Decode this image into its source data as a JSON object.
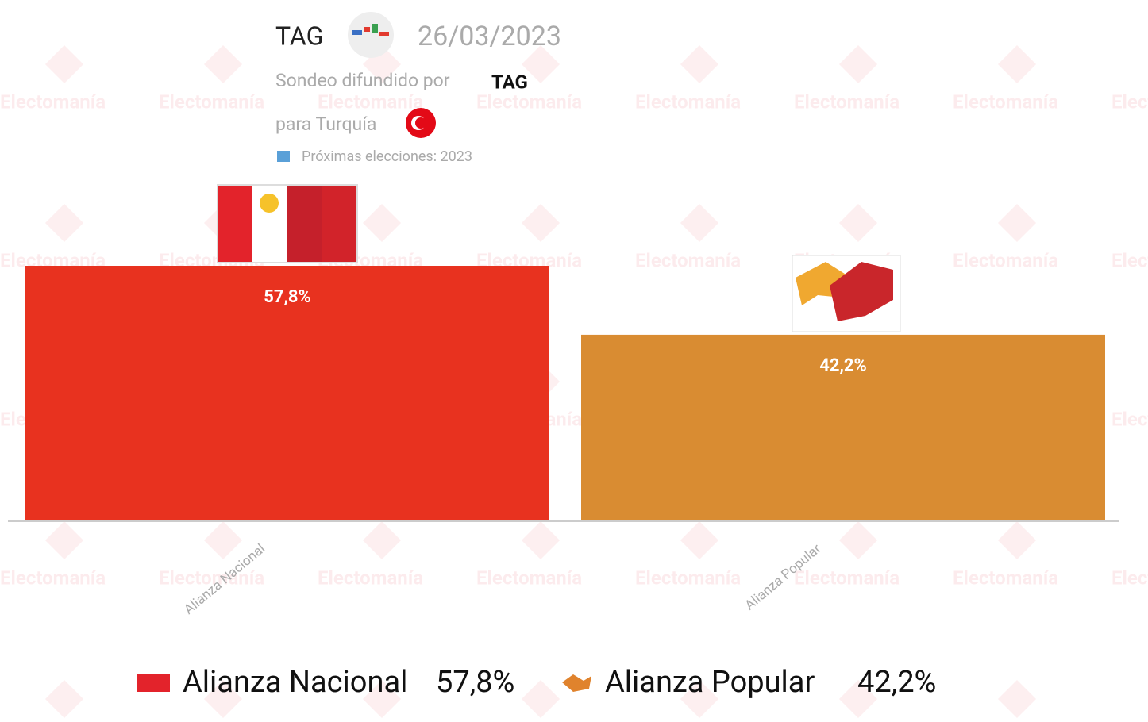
{
  "chart_data": {
    "type": "bar",
    "title": "TAG",
    "date": "26/03/2023",
    "source_prefix": "Sondeo difundido por",
    "source": "TAG",
    "region": "para Turquía",
    "note": "Próximas elecciones: 2023",
    "watermark": "Electomanía",
    "categories": [
      "Alianza Nacional",
      "Alianza Popular"
    ],
    "values": [
      57.8,
      42.2
    ],
    "value_labels": [
      "57,8%",
      "42,2%"
    ],
    "colors": [
      "#e8321f",
      "#d98c32"
    ]
  }
}
